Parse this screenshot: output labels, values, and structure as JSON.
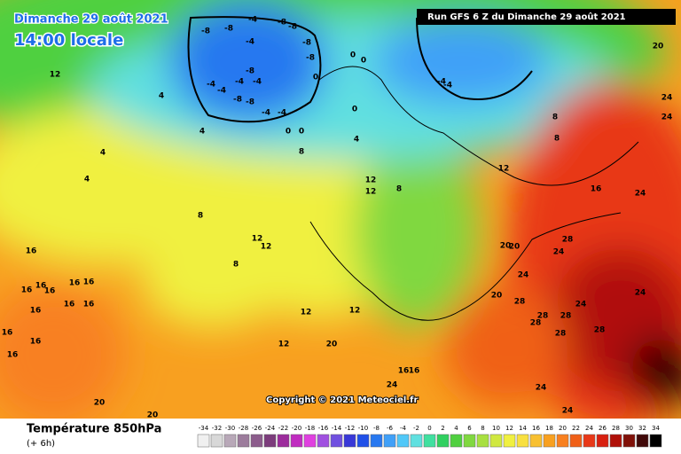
{
  "header": {
    "date": "Dimanche 29 août 2021",
    "time": "14:00 locale",
    "run": "Run GFS 6 Z du Dimanche 29 août 2021"
  },
  "copyright": "Copyright © 2021 Meteociel.fr",
  "footer": {
    "title": "Température 850hPa",
    "step": "(+ 6h)"
  },
  "colorbar": {
    "ticks": [
      -34,
      -32,
      -30,
      -28,
      -26,
      -24,
      -22,
      -20,
      -18,
      -16,
      -14,
      -12,
      -10,
      -8,
      -6,
      -4,
      -2,
      0,
      2,
      4,
      6,
      8,
      10,
      12,
      14,
      16,
      18,
      20,
      22,
      24,
      26,
      28,
      30,
      32,
      34
    ],
    "colors": [
      "#f0f0f0",
      "#d8d8d8",
      "#b8a8b8",
      "#9c7c9c",
      "#8c5c8c",
      "#7c3c7c",
      "#9c2c9c",
      "#c02cc0",
      "#e040e0",
      "#a050e0",
      "#7050e0",
      "#3838d8",
      "#2050e8",
      "#2878f0",
      "#40a0f8",
      "#50c8f8",
      "#60e0e0",
      "#40e0a0",
      "#30d060",
      "#50d040",
      "#80d840",
      "#a8e040",
      "#d0e840",
      "#f0f040",
      "#f8e040",
      "#f8c030",
      "#f8a020",
      "#f88020",
      "#f06018",
      "#e83818",
      "#d82010",
      "#b01008",
      "#801008",
      "#400808",
      "#000000"
    ]
  },
  "map_labels": [
    -8,
    -4,
    -8,
    -8,
    -8,
    -8,
    -8,
    -4,
    -8,
    -4,
    -4,
    -8,
    -8,
    -4,
    -4,
    -4,
    -4,
    0,
    0,
    0,
    0,
    0,
    0,
    -4,
    -4,
    4,
    4,
    4,
    4,
    4,
    12,
    8,
    8,
    8,
    8,
    12,
    12,
    12,
    16,
    24,
    8,
    12,
    12,
    8,
    16,
    16,
    16,
    16,
    16,
    16,
    16,
    16,
    16,
    16,
    16,
    16,
    20,
    20,
    20,
    24,
    24,
    28,
    28,
    24,
    28,
    28,
    28,
    28,
    24,
    24,
    24,
    28,
    20,
    20,
    24,
    24,
    24,
    20,
    20,
    12,
    12,
    12,
    16,
    16
  ]
}
